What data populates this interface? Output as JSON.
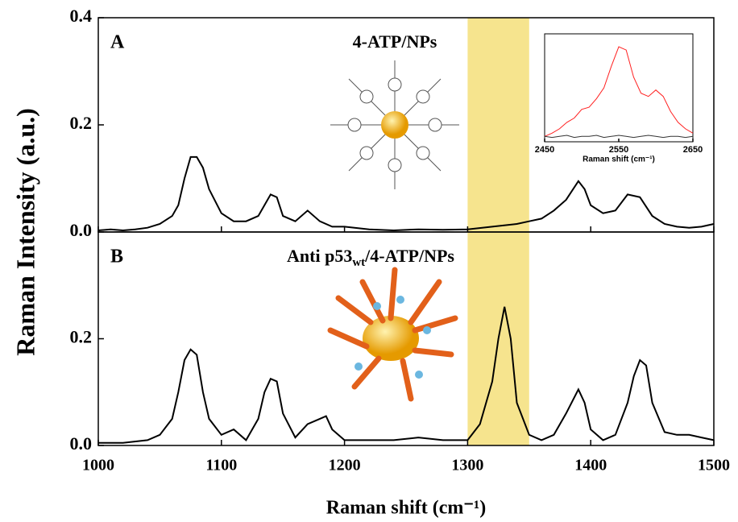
{
  "chart_data": [
    {
      "type": "line",
      "panel_label": "A",
      "annotation": "4-ATP/NPs",
      "y_label": "Raman Intensity (a.u.)",
      "xlim": [
        1000,
        1500
      ],
      "xticks": [
        1000,
        1100,
        1200,
        1300,
        1400,
        1500
      ],
      "ylim": [
        0,
        0.4
      ],
      "yticks": [
        {
          "value": 0,
          "label": "0.0"
        },
        {
          "value": 0.2,
          "label": "0.2"
        },
        {
          "value": 0.4,
          "label": "0.4"
        }
      ],
      "highlight": {
        "range": [
          1300,
          1350
        ],
        "color": "#f6e48e"
      },
      "x": [
        1000,
        1010,
        1020,
        1030,
        1040,
        1050,
        1060,
        1065,
        1070,
        1075,
        1080,
        1085,
        1090,
        1100,
        1110,
        1120,
        1130,
        1140,
        1145,
        1150,
        1160,
        1170,
        1180,
        1190,
        1200,
        1220,
        1240,
        1260,
        1280,
        1300,
        1320,
        1340,
        1350,
        1360,
        1370,
        1380,
        1390,
        1395,
        1400,
        1410,
        1420,
        1430,
        1440,
        1450,
        1460,
        1470,
        1480,
        1490,
        1500
      ],
      "series": [
        {
          "color": "#000000",
          "values": [
            0.003,
            0.005,
            0.003,
            0.005,
            0.008,
            0.015,
            0.03,
            0.05,
            0.1,
            0.14,
            0.14,
            0.12,
            0.08,
            0.035,
            0.02,
            0.02,
            0.03,
            0.07,
            0.065,
            0.03,
            0.02,
            0.04,
            0.02,
            0.01,
            0.01,
            0.005,
            0.003,
            0.005,
            0.004,
            0.005,
            0.01,
            0.015,
            0.02,
            0.025,
            0.04,
            0.06,
            0.095,
            0.08,
            0.05,
            0.035,
            0.04,
            0.07,
            0.065,
            0.03,
            0.015,
            0.01,
            0.008,
            0.01,
            0.015
          ]
        }
      ]
    },
    {
      "type": "line",
      "panel_label": "B",
      "annotation_parts": [
        "Anti p53",
        "wt",
        "/4-ATP/NPs"
      ],
      "x_label": "Raman shift (cm⁻¹)",
      "xlim": [
        1000,
        1500
      ],
      "xticks": [
        1000,
        1100,
        1200,
        1300,
        1400,
        1500
      ],
      "ylim": [
        0,
        0.4
      ],
      "yticks": [
        {
          "value": 0,
          "label": "0.0"
        },
        {
          "value": 0.2,
          "label": "0.2"
        }
      ],
      "highlight": {
        "range": [
          1300,
          1350
        ],
        "color": "#f6e48e"
      },
      "x": [
        1000,
        1020,
        1040,
        1050,
        1060,
        1065,
        1070,
        1075,
        1080,
        1085,
        1090,
        1100,
        1110,
        1120,
        1130,
        1135,
        1140,
        1145,
        1150,
        1160,
        1170,
        1180,
        1185,
        1190,
        1200,
        1220,
        1240,
        1260,
        1280,
        1300,
        1310,
        1320,
        1325,
        1330,
        1335,
        1340,
        1350,
        1360,
        1370,
        1380,
        1390,
        1395,
        1400,
        1410,
        1420,
        1430,
        1435,
        1440,
        1445,
        1450,
        1460,
        1470,
        1480,
        1490,
        1500
      ],
      "series": [
        {
          "color": "#000000",
          "values": [
            0.005,
            0.005,
            0.01,
            0.02,
            0.05,
            0.1,
            0.16,
            0.18,
            0.17,
            0.1,
            0.05,
            0.02,
            0.03,
            0.01,
            0.05,
            0.1,
            0.125,
            0.12,
            0.06,
            0.015,
            0.04,
            0.05,
            0.055,
            0.03,
            0.01,
            0.01,
            0.01,
            0.015,
            0.01,
            0.01,
            0.04,
            0.12,
            0.2,
            0.26,
            0.2,
            0.08,
            0.02,
            0.01,
            0.02,
            0.06,
            0.105,
            0.08,
            0.03,
            0.01,
            0.02,
            0.08,
            0.13,
            0.16,
            0.15,
            0.08,
            0.025,
            0.02,
            0.02,
            0.015,
            0.01
          ]
        }
      ]
    },
    {
      "type": "line",
      "x_label": "Raman shift (cm⁻¹)",
      "xlim": [
        2450,
        2650
      ],
      "xticks": [
        2450,
        2550,
        2650
      ],
      "ylim": [
        0,
        1
      ],
      "x": [
        2450,
        2460,
        2470,
        2480,
        2490,
        2500,
        2510,
        2520,
        2530,
        2540,
        2550,
        2560,
        2570,
        2580,
        2590,
        2600,
        2610,
        2620,
        2630,
        2640,
        2650
      ],
      "series": [
        {
          "color": "#ff2020",
          "values": [
            0.05,
            0.08,
            0.12,
            0.18,
            0.22,
            0.3,
            0.32,
            0.4,
            0.5,
            0.7,
            0.88,
            0.85,
            0.6,
            0.45,
            0.42,
            0.48,
            0.42,
            0.28,
            0.18,
            0.12,
            0.08
          ]
        },
        {
          "color": "#333333",
          "values": [
            0.05,
            0.04,
            0.05,
            0.06,
            0.04,
            0.05,
            0.05,
            0.06,
            0.04,
            0.05,
            0.06,
            0.05,
            0.04,
            0.05,
            0.06,
            0.05,
            0.04,
            0.05,
            0.05,
            0.04,
            0.05
          ]
        }
      ]
    }
  ]
}
